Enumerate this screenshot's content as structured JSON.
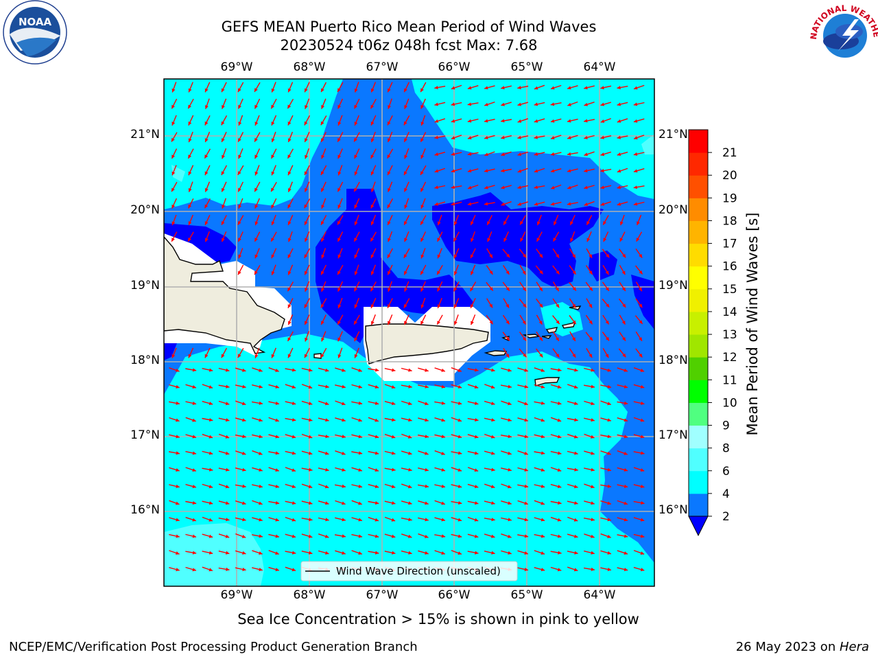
{
  "header": {
    "title_line1": "GEFS MEAN Puerto Rico Mean Period of Wind Waves",
    "title_line2": "20230524 t06z 048h fcst   Max: 7.68"
  },
  "map": {
    "lon_labels": [
      "69°W",
      "68°W",
      "67°W",
      "66°W",
      "65°W",
      "64°W"
    ],
    "lat_labels": [
      "21°N",
      "20°N",
      "19°N",
      "18°N",
      "17°N",
      "16°N"
    ],
    "legend_label": "Wind Wave Direction (unscaled)",
    "arrow_color": "#ff0000",
    "land_color": "#efedde",
    "colors": {
      "lt2": "#0000ff",
      "c2_4": "#0a78ff",
      "c4_6": "#00ffff",
      "c6_8": "#50ffff",
      "masked": "#ffffff"
    }
  },
  "colorbar": {
    "label": "Mean Period of Wind Waves [s]",
    "ticks": [
      "2",
      "4",
      "6",
      "8",
      "9",
      "10",
      "11",
      "12",
      "13",
      "14",
      "15",
      "16",
      "17",
      "18",
      "19",
      "20",
      "21"
    ],
    "colors": [
      "#0a78ff",
      "#00ffff",
      "#50ffff",
      "#a0ffff",
      "#50ff80",
      "#00ff00",
      "#50d000",
      "#a0e600",
      "#c8f000",
      "#f0f000",
      "#ffff00",
      "#ffdc00",
      "#ffb400",
      "#ff8c00",
      "#ff5000",
      "#ff2800",
      "#ff0000"
    ],
    "under_color": "#0000ff"
  },
  "footer": {
    "subtitle": "Sea Ice Concentration > 15% is shown in pink to yellow",
    "credit": "NCEP/EMC/Verification Post Processing Product Generation Branch",
    "date": "26 May 2023 on ",
    "machine": "Hera"
  },
  "logos": {
    "left": "NOAA",
    "right": "NATIONAL WEATHER SERVICE"
  }
}
